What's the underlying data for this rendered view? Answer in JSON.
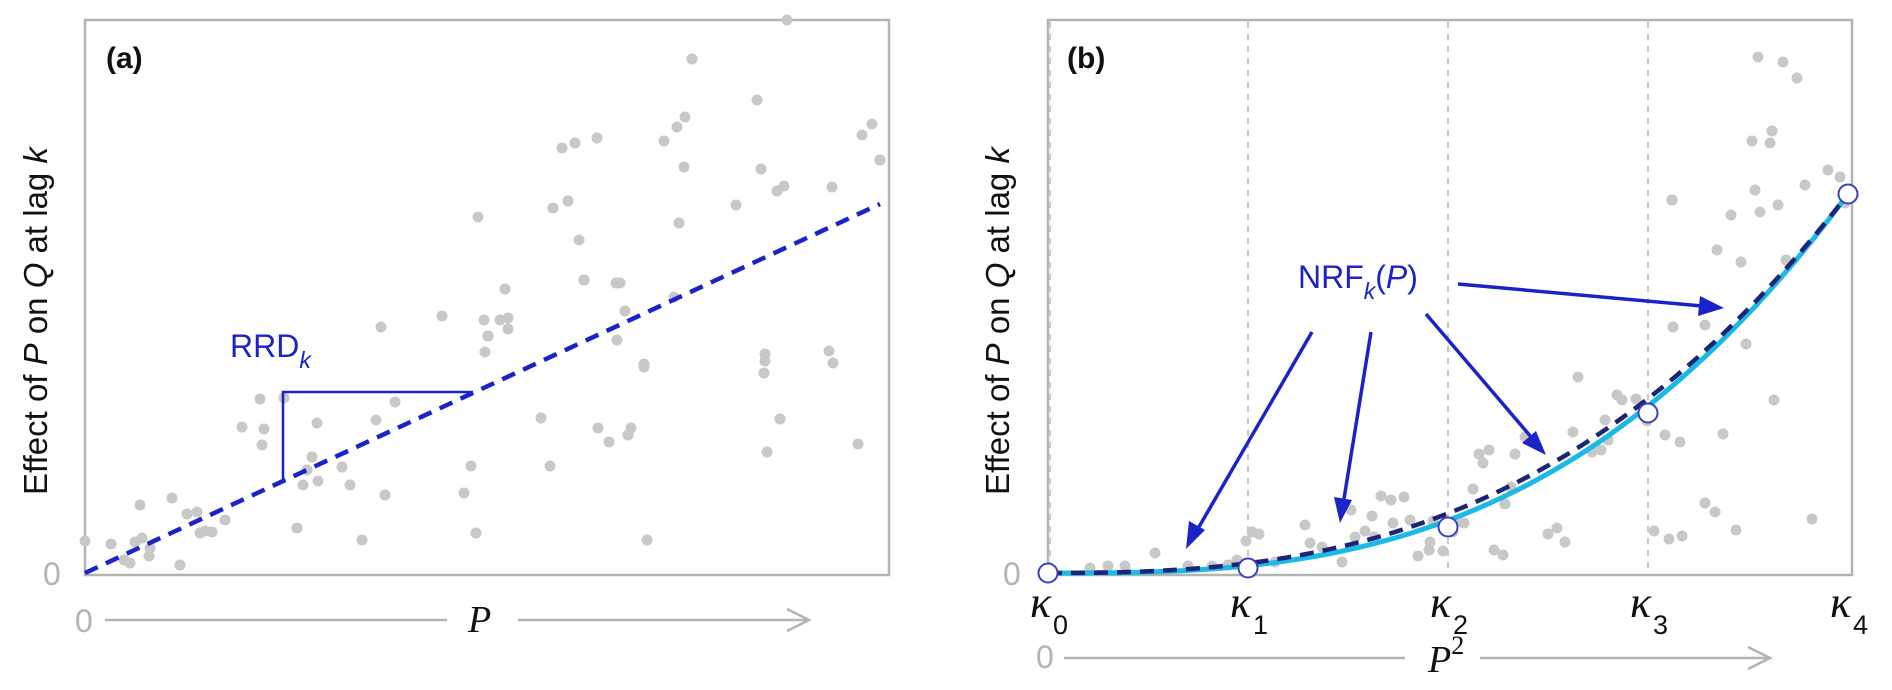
{
  "panel_a": {
    "tag": "(a)",
    "ylabel": [
      "Effect of ",
      "P",
      " on ",
      "Q",
      " at lag ",
      "k"
    ],
    "zero_y": "0",
    "zero_x": "0",
    "xlabel": "P",
    "annotation": {
      "main": "RRD",
      "sub": "k"
    }
  },
  "panel_b": {
    "tag": "(b)",
    "ylabel": [
      "Effect of ",
      "P",
      " on ",
      "Q",
      " at lag ",
      "k"
    ],
    "zero_y": "0",
    "zero_x": "0",
    "xlabel": {
      "main": "P",
      "sup": "2"
    },
    "knots": [
      {
        "symbol": "κ",
        "sub": "0"
      },
      {
        "symbol": "κ",
        "sub": "1"
      },
      {
        "symbol": "κ",
        "sub": "2"
      },
      {
        "symbol": "κ",
        "sub": "3"
      },
      {
        "symbol": "κ",
        "sub": "4"
      }
    ],
    "annotation": {
      "pre": "NRF",
      "sub": "k",
      "open": "(",
      "arg": "P",
      "close": ")"
    }
  },
  "colors": {
    "axis_gray": "#b3b3b3",
    "points": "#c8c8c8",
    "blue": "#1a22c8",
    "dark_blue": "#1c2478",
    "cyan": "#1ab9e6"
  }
}
